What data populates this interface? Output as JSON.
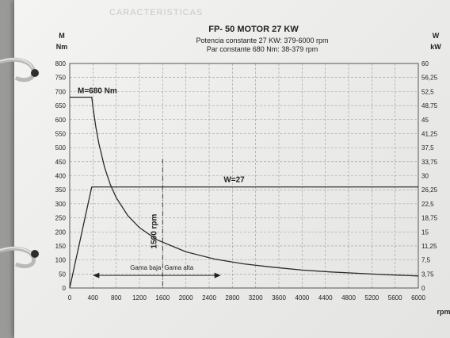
{
  "chart_data": {
    "type": "line",
    "title": "FP- 50   MOTOR 27 KW",
    "subtitle_lines": [
      "Potencia constante 27 KW: 379-6000 rpm",
      "Par constante 680 Nm: 38-379 rpm"
    ],
    "ylabel_left": [
      "M",
      "Nm"
    ],
    "ylabel_right": [
      "W",
      "kW"
    ],
    "xlabel": "rpm",
    "xlim": [
      0,
      6000
    ],
    "ylim_left": [
      0,
      800
    ],
    "ylim_right": [
      0,
      60
    ],
    "x_ticks": [
      "0",
      "400",
      "800",
      "1200",
      "1600",
      "2000",
      "2400",
      "2800",
      "3200",
      "3600",
      "4000",
      "4400",
      "4800",
      "5200",
      "5600",
      "6000"
    ],
    "y_ticks_left": [
      "0",
      "50",
      "100",
      "150",
      "200",
      "250",
      "300",
      "350",
      "400",
      "450",
      "500",
      "550",
      "600",
      "650",
      "700",
      "750",
      "800"
    ],
    "y_ticks_right": [
      "0",
      "3,75",
      "7,5",
      "11,25",
      "15",
      "18,75",
      "22,5",
      "26,25",
      "30",
      "33,75",
      "37,5",
      "41,25",
      "45",
      "48,75",
      "52,5",
      "56,25",
      "60"
    ],
    "grid": true,
    "series": [
      {
        "name": "M=680 Nm",
        "axis": "left",
        "x": [
          0,
          379,
          400,
          450,
          500,
          600,
          700,
          800,
          1000,
          1200,
          1500,
          2000,
          2500,
          3000,
          3500,
          4000,
          4500,
          5000,
          5500,
          6000
        ],
        "y": [
          680,
          680,
          645,
          573,
          516,
          430,
          368,
          322,
          258,
          215,
          172,
          129,
          103,
          86,
          74,
          64,
          57,
          52,
          47,
          43
        ]
      },
      {
        "name": "W=27",
        "axis": "right",
        "x": [
          0,
          379,
          6000
        ],
        "y": [
          0,
          27,
          27
        ]
      }
    ],
    "annotations": {
      "speed_marker": {
        "label": "1500 rpm",
        "x": 1600
      },
      "range_low": {
        "label": "Gama baja",
        "x": [
          400,
          1600
        ]
      },
      "range_high": {
        "label": "Gama alta",
        "x": [
          1600,
          2600
        ]
      }
    }
  },
  "background_text": "CARACTERISTICAS"
}
